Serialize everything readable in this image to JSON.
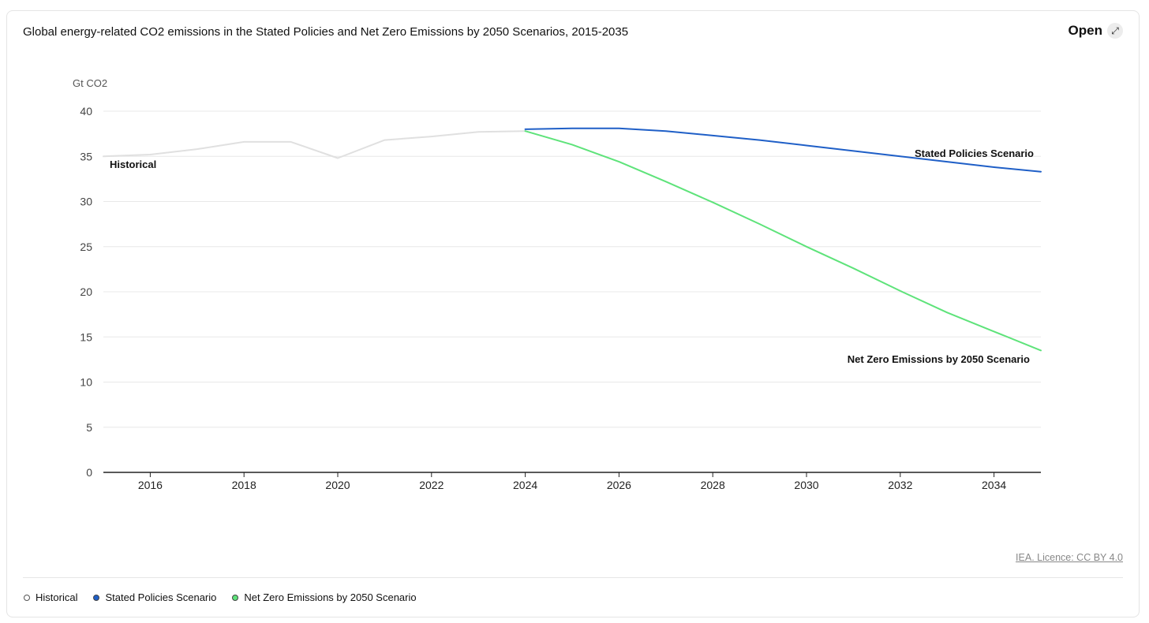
{
  "header": {
    "title": "Global energy-related CO2 emissions in the Stated Policies and Net Zero Emissions by 2050 Scenarios, 2015-2035",
    "open_label": "Open",
    "open_icon": "expand-icon"
  },
  "source_label": "IEA. Licence: CC BY 4.0",
  "colors": {
    "historical": "#e0e0e0",
    "stated": "#1f5fc7",
    "netzero": "#5ee37a",
    "grid": "#e8e8e8",
    "axis": "#222222"
  },
  "legend": [
    {
      "label": "Historical",
      "key": "historical"
    },
    {
      "label": "Stated Policies Scenario",
      "key": "stated"
    },
    {
      "label": "Net Zero Emissions by 2050 Scenario",
      "key": "netzero"
    }
  ],
  "chart_data": {
    "type": "line",
    "title": "Global energy-related CO2 emissions in the Stated Policies and Net Zero Emissions by 2050 Scenarios, 2015-2035",
    "ylabel": "Gt CO2",
    "xlabel": "",
    "xlim": [
      2015,
      2035
    ],
    "ylim": [
      0,
      40
    ],
    "yticks": [
      0,
      5,
      10,
      15,
      20,
      25,
      30,
      35,
      40
    ],
    "xticks": [
      2016,
      2018,
      2020,
      2022,
      2024,
      2026,
      2028,
      2030,
      2032,
      2034
    ],
    "grid": true,
    "legend_position": "bottom",
    "series": [
      {
        "name": "Historical",
        "key": "historical",
        "x": [
          2015,
          2016,
          2017,
          2018,
          2019,
          2020,
          2021,
          2022,
          2023,
          2024
        ],
        "y": [
          35.0,
          35.2,
          35.8,
          36.6,
          36.6,
          34.8,
          36.8,
          37.2,
          37.7,
          37.8
        ]
      },
      {
        "name": "Stated Policies Scenario",
        "key": "stated",
        "x": [
          2024,
          2025,
          2026,
          2027,
          2028,
          2029,
          2030,
          2031,
          2032,
          2033,
          2034,
          2035
        ],
        "y": [
          38.0,
          38.1,
          38.1,
          37.8,
          37.3,
          36.8,
          36.2,
          35.6,
          35.0,
          34.4,
          33.8,
          33.3
        ]
      },
      {
        "name": "Net Zero Emissions by 2050 Scenario",
        "key": "netzero",
        "x": [
          2024,
          2025,
          2026,
          2027,
          2028,
          2029,
          2030,
          2031,
          2032,
          2033,
          2034,
          2035
        ],
        "y": [
          37.8,
          36.3,
          34.4,
          32.2,
          29.9,
          27.5,
          25.0,
          22.6,
          20.1,
          17.7,
          15.6,
          13.5
        ]
      }
    ]
  }
}
